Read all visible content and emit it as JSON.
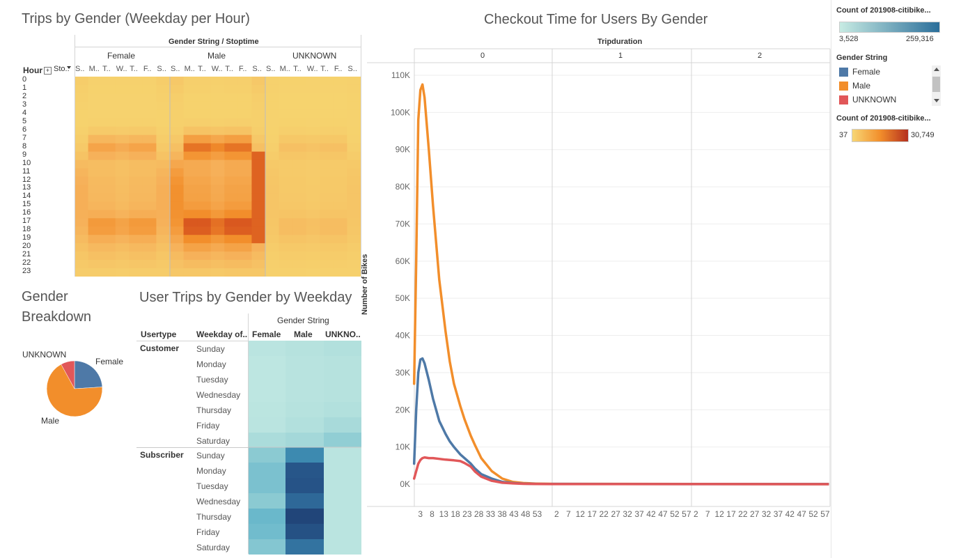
{
  "heatmap1": {
    "title": "Trips by Gender (Weekday per Hour)",
    "header": "Gender String / Stoptime",
    "genders": [
      "Female",
      "Male",
      "UNKNOWN"
    ],
    "day_labels": [
      "S..",
      "M..",
      "T..",
      "W..",
      "T..",
      "F..",
      "S.."
    ],
    "row_header": "Hour",
    "col_header_short": "Sto..",
    "hours": [
      "0",
      "1",
      "2",
      "3",
      "4",
      "5",
      "6",
      "7",
      "8",
      "9",
      "10",
      "11",
      "12",
      "13",
      "14",
      "15",
      "16",
      "17",
      "18",
      "19",
      "20",
      "21",
      "22",
      "23"
    ]
  },
  "pie": {
    "title_line1": "Gender",
    "title_line2": "Breakdown",
    "labels": {
      "unknown": "UNKNOWN",
      "female": "Female",
      "male": "Male"
    },
    "slices": [
      {
        "name": "Female",
        "fraction": 0.24,
        "color": "#4e79a7"
      },
      {
        "name": "Male",
        "fraction": 0.68,
        "color": "#f28e2b"
      },
      {
        "name": "UNKNOWN",
        "fraction": 0.08,
        "color": "#e15759"
      }
    ]
  },
  "weekday_table": {
    "title": "User Trips by Gender by Weekday",
    "col_usertype": "Usertype",
    "col_weekday": "Weekday of..",
    "gender_header": "Gender String",
    "genders": [
      "Female",
      "Male",
      "UNKNO.."
    ],
    "groups": [
      {
        "usertype": "Customer",
        "days": [
          "Sunday",
          "Monday",
          "Tuesday",
          "Wednesday",
          "Thursday",
          "Friday",
          "Saturday"
        ]
      },
      {
        "usertype": "Subscriber",
        "days": [
          "Sunday",
          "Monday",
          "Tuesday",
          "Wednesday",
          "Thursday",
          "Friday",
          "Saturday"
        ]
      }
    ]
  },
  "line_chart": {
    "title": "Checkout Time for Users By Gender",
    "panel_header": "Tripduration",
    "panels": [
      "0",
      "1",
      "2"
    ],
    "ylabel": "Number of Bikes",
    "yticks": [
      "0K",
      "10K",
      "20K",
      "30K",
      "40K",
      "50K",
      "60K",
      "70K",
      "80K",
      "90K",
      "100K",
      "110K"
    ],
    "xticks_panel0": [
      "3",
      "8",
      "13",
      "18",
      "23",
      "28",
      "33",
      "38",
      "43",
      "48",
      "53"
    ],
    "xticks_panel12": [
      "2",
      "7",
      "12",
      "17",
      "22",
      "27",
      "32",
      "37",
      "42",
      "47",
      "52",
      "57"
    ]
  },
  "chart_data": {
    "type": "line",
    "title": "Checkout Time for Users By Gender",
    "xlabel": "",
    "ylabel": "Number of Bikes",
    "ylim": [
      0,
      115000
    ],
    "facets": [
      "0",
      "1",
      "2"
    ],
    "facet_header": "Tripduration",
    "x": [
      1,
      2,
      3,
      4,
      5,
      6,
      8,
      10,
      13,
      16,
      18,
      20,
      23,
      25,
      28,
      30,
      33,
      38,
      43,
      48,
      53,
      59
    ],
    "series": [
      {
        "name": "Male",
        "color": "#f28e2b",
        "values": [
          27000,
          60000,
          98000,
          106000,
          107500,
          104000,
          90000,
          75000,
          55000,
          41000,
          33000,
          27000,
          21000,
          17500,
          13000,
          10500,
          7000,
          3500,
          1500,
          600,
          300,
          150
        ]
      },
      {
        "name": "Female",
        "color": "#4e79a7",
        "values": [
          5500,
          20000,
          30000,
          33500,
          33800,
          32500,
          28000,
          23000,
          17000,
          13500,
          11500,
          10000,
          8000,
          7000,
          5500,
          4200,
          2700,
          1500,
          600,
          300,
          150,
          80
        ]
      },
      {
        "name": "UNKNOWN",
        "color": "#e15759",
        "values": [
          1500,
          3500,
          5500,
          6500,
          7000,
          7200,
          7000,
          7000,
          6800,
          6600,
          6500,
          6400,
          6200,
          5700,
          4700,
          3400,
          2000,
          900,
          400,
          200,
          100,
          50
        ]
      }
    ]
  },
  "legend": {
    "count_title1": "Count of 201908-citibike...",
    "count1_min": "3,528",
    "count1_max": "259,316",
    "gender_title": "Gender String",
    "items": [
      {
        "name": "Female",
        "color": "#4e79a7"
      },
      {
        "name": "Male",
        "color": "#f28e2b"
      },
      {
        "name": "UNKNOWN",
        "color": "#e15759"
      }
    ],
    "count_title2": "Count of 201908-citibike...",
    "count2_min": "37",
    "count2_max": "30,749"
  }
}
